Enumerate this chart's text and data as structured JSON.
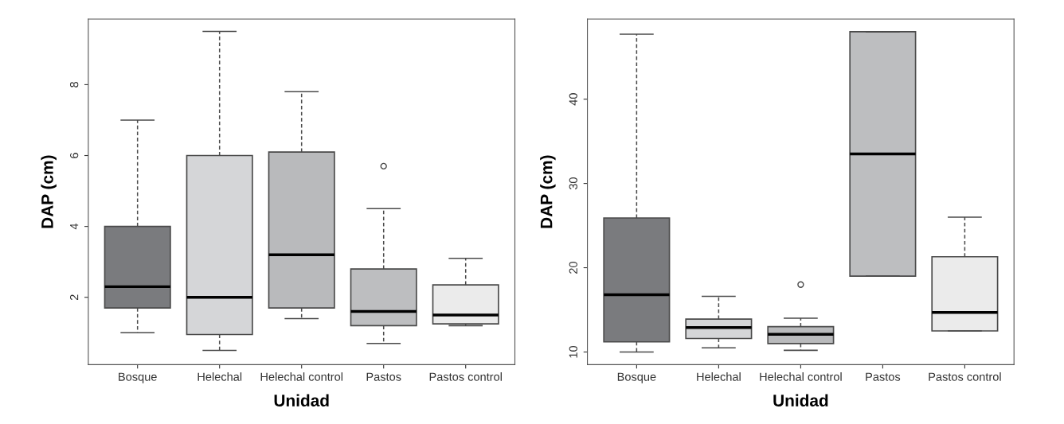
{
  "chart_data": [
    {
      "type": "box",
      "xlabel": "Unidad",
      "ylabel": "DAP (cm)",
      "categories": [
        "Bosque",
        "Helechal",
        "Helechal control",
        "Pastos",
        "Pastos control"
      ],
      "colors": [
        "#7a7b7e",
        "#d5d6d8",
        "#b9babc",
        "#bdbec0",
        "#ebebeb"
      ],
      "boxes": [
        {
          "low": 1.0,
          "q1": 1.7,
          "median": 2.3,
          "q3": 4.0,
          "high": 7.0
        },
        {
          "low": 0.5,
          "q1": 0.95,
          "median": 2.0,
          "q3": 6.0,
          "high": 9.5
        },
        {
          "low": 1.4,
          "q1": 1.7,
          "median": 3.2,
          "q3": 6.1,
          "high": 7.8
        },
        {
          "low": 0.7,
          "q1": 1.2,
          "median": 1.6,
          "q3": 2.8,
          "high": 4.5,
          "outliers": [
            5.7
          ]
        },
        {
          "low": 1.2,
          "q1": 1.25,
          "median": 1.5,
          "q3": 2.35,
          "high": 3.1
        }
      ],
      "ylim": [
        0.1,
        9.85
      ],
      "yticks": [
        2,
        4,
        6,
        8
      ],
      "grid": false,
      "legend": false
    },
    {
      "type": "box",
      "xlabel": "Unidad",
      "ylabel": "DAP (cm)",
      "categories": [
        "Bosque",
        "Helechal",
        "Helechal control",
        "Pastos",
        "Pastos control"
      ],
      "colors": [
        "#7a7b7e",
        "#d5d6d8",
        "#b9babc",
        "#bdbec0",
        "#ebebeb"
      ],
      "boxes": [
        {
          "low": 10.0,
          "q1": 11.2,
          "median": 16.8,
          "q3": 25.9,
          "high": 47.7
        },
        {
          "low": 10.5,
          "q1": 11.6,
          "median": 12.9,
          "q3": 13.9,
          "high": 16.6
        },
        {
          "low": 10.2,
          "q1": 11.0,
          "median": 12.1,
          "q3": 13.0,
          "high": 14.0,
          "outliers": [
            18.0
          ]
        },
        {
          "low": 19.0,
          "q1": 19.0,
          "median": 33.5,
          "q3": 48.0,
          "high": 48.0
        },
        {
          "low": 12.5,
          "q1": 12.5,
          "median": 14.7,
          "q3": 21.3,
          "high": 26.0
        }
      ],
      "ylim": [
        8.5,
        49.5
      ],
      "yticks": [
        10,
        20,
        30,
        40
      ],
      "grid": false,
      "legend": false
    }
  ]
}
